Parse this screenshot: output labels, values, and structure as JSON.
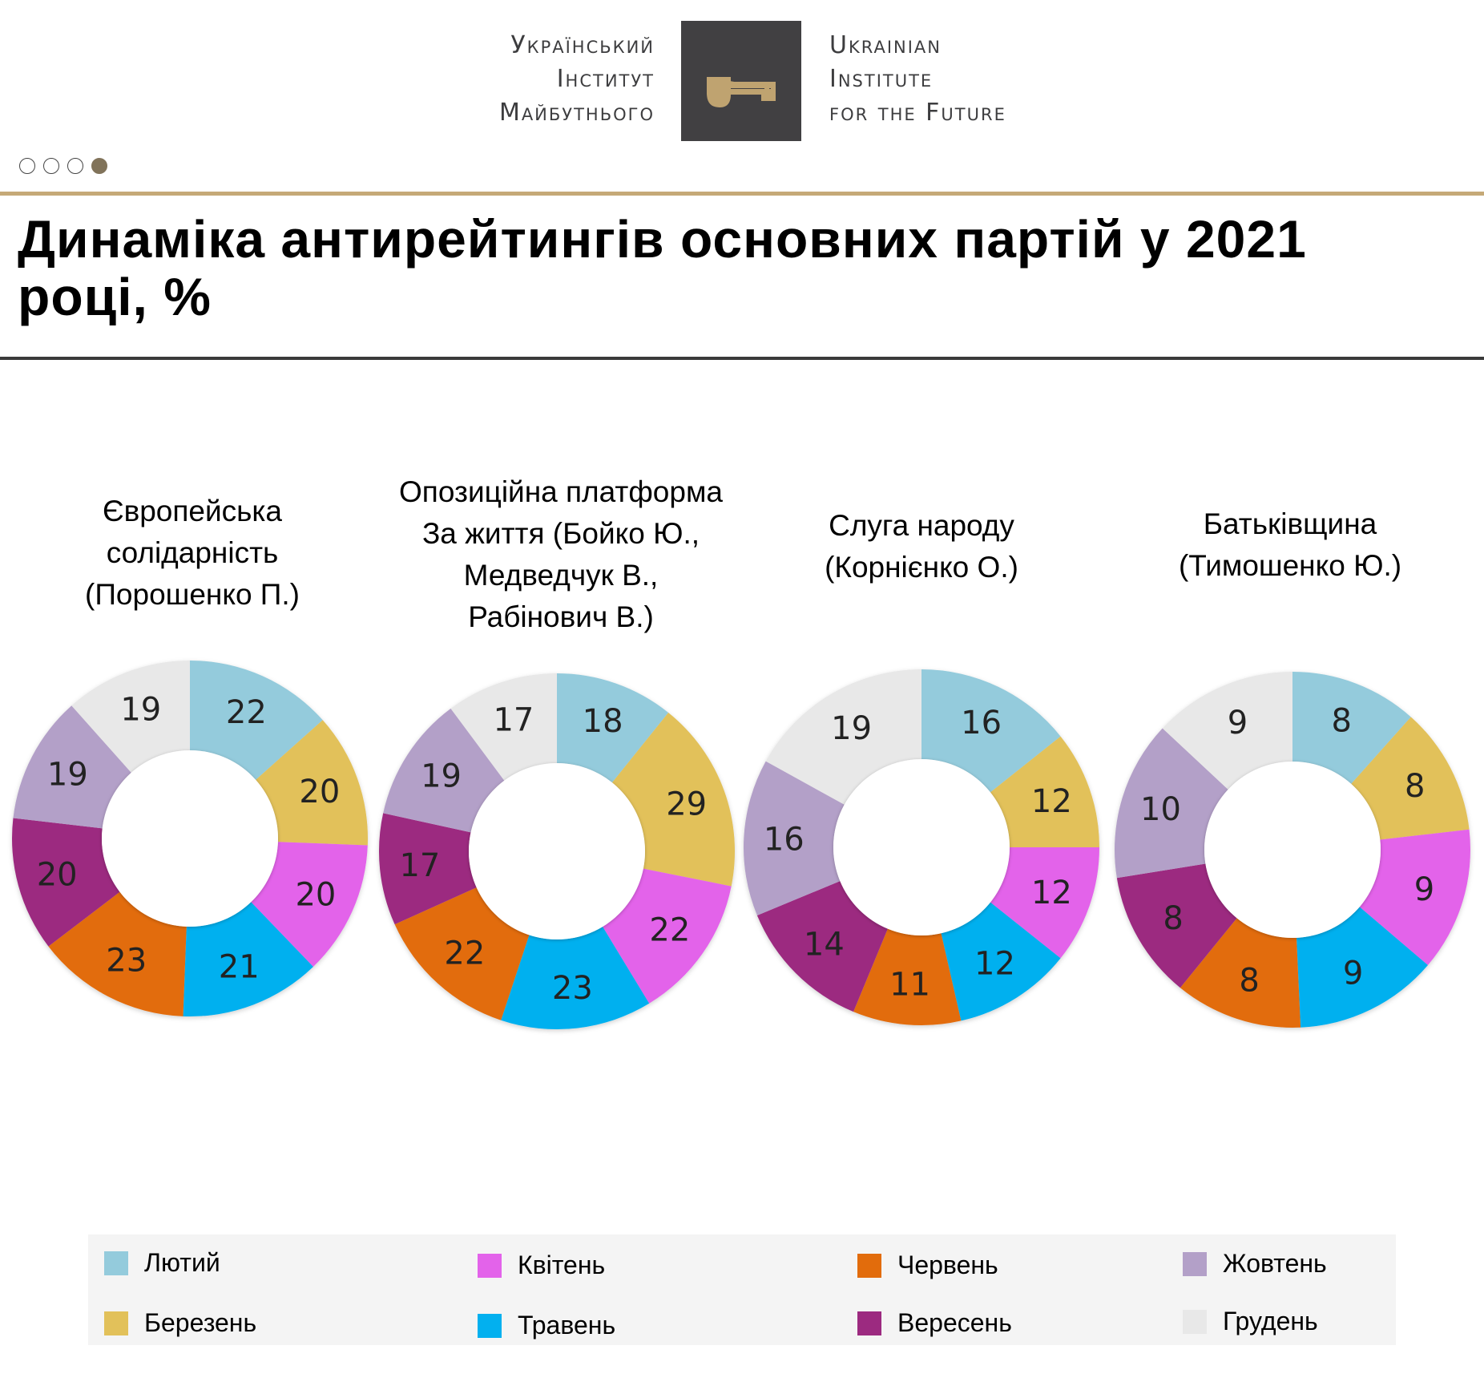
{
  "header": {
    "logo_ua": [
      "Український",
      "Інститут",
      "Майбутнього"
    ],
    "logo_en": [
      "Ukrainian",
      "Institute",
      "for the Future"
    ],
    "logo_icon": "key-icon",
    "brand_colors": {
      "logo_box": "#414042",
      "key": "#bfa370",
      "rule": "#c5a977"
    }
  },
  "pagination": {
    "total": 4,
    "active": 4
  },
  "title": "Динаміка антирейтингів основних партій у 2021 році, %",
  "legend": [
    {
      "label": "Лютий",
      "color": "#94cbdc"
    },
    {
      "label": "Березень",
      "color": "#e2c15a"
    },
    {
      "label": "Квітень",
      "color": "#e363ea"
    },
    {
      "label": "Травень",
      "color": "#02b0ef"
    },
    {
      "label": "Червень",
      "color": "#e26c0c"
    },
    {
      "label": "Вересень",
      "color": "#9c2a80"
    },
    {
      "label": "Жовтень",
      "color": "#b3a0c8"
    },
    {
      "label": "Грудень",
      "color": "#e8e8e8"
    }
  ],
  "chart_data": [
    {
      "type": "pie",
      "style": "donut",
      "title": "Європейська солідарність (Порошенко П.)",
      "title_lines": [
        "Європейська",
        "солідарність",
        "(Порошенко П.)"
      ],
      "categories": [
        "Лютий",
        "Березень",
        "Квітень",
        "Травень",
        "Червень",
        "Вересень",
        "Жовтень",
        "Грудень"
      ],
      "values": [
        22,
        20,
        20,
        21,
        23,
        20,
        19,
        19
      ]
    },
    {
      "type": "pie",
      "style": "donut",
      "title": "Опозиційна платформа За життя (Бойко Ю., Медведчук В., Рабінович В.)",
      "title_lines": [
        "Опозиційна платформа",
        "За життя (Бойко Ю.,",
        "Медведчук В.,",
        "Рабінович В.)"
      ],
      "categories": [
        "Лютий",
        "Березень",
        "Квітень",
        "Травень",
        "Червень",
        "Вересень",
        "Жовтень",
        "Грудень"
      ],
      "values": [
        18,
        29,
        22,
        23,
        22,
        17,
        19,
        17
      ]
    },
    {
      "type": "pie",
      "style": "donut",
      "title": "Слуга народу (Корнієнко О.)",
      "title_lines": [
        "Слуга народу",
        "(Корнієнко О.)"
      ],
      "categories": [
        "Лютий",
        "Березень",
        "Квітень",
        "Травень",
        "Червень",
        "Вересень",
        "Жовтень",
        "Грудень"
      ],
      "values": [
        16,
        12,
        12,
        12,
        11,
        14,
        16,
        19
      ]
    },
    {
      "type": "pie",
      "style": "donut",
      "title": "Батьківщина (Тимошенко Ю.)",
      "title_lines": [
        "Батьківщина",
        "(Тимошенко Ю.)"
      ],
      "categories": [
        "Лютий",
        "Березень",
        "Квітень",
        "Травень",
        "Червень",
        "Вересень",
        "Жовтень",
        "Грудень"
      ],
      "values": [
        8,
        8,
        9,
        9,
        8,
        8,
        10,
        9
      ]
    }
  ]
}
